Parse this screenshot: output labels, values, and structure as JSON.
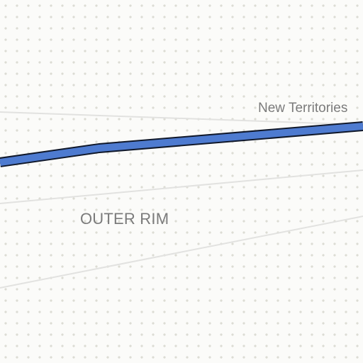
{
  "map": {
    "labels": {
      "region": "OUTER RIM",
      "place": "New Territories"
    },
    "colors": {
      "background": "#fbfbf9",
      "dot_pattern": "#dcdcd4",
      "minor_road": "#e2e2e0",
      "route_fill": "#4e7bd0",
      "route_casing": "#10182a",
      "label_text": "#7b7b7b"
    }
  }
}
